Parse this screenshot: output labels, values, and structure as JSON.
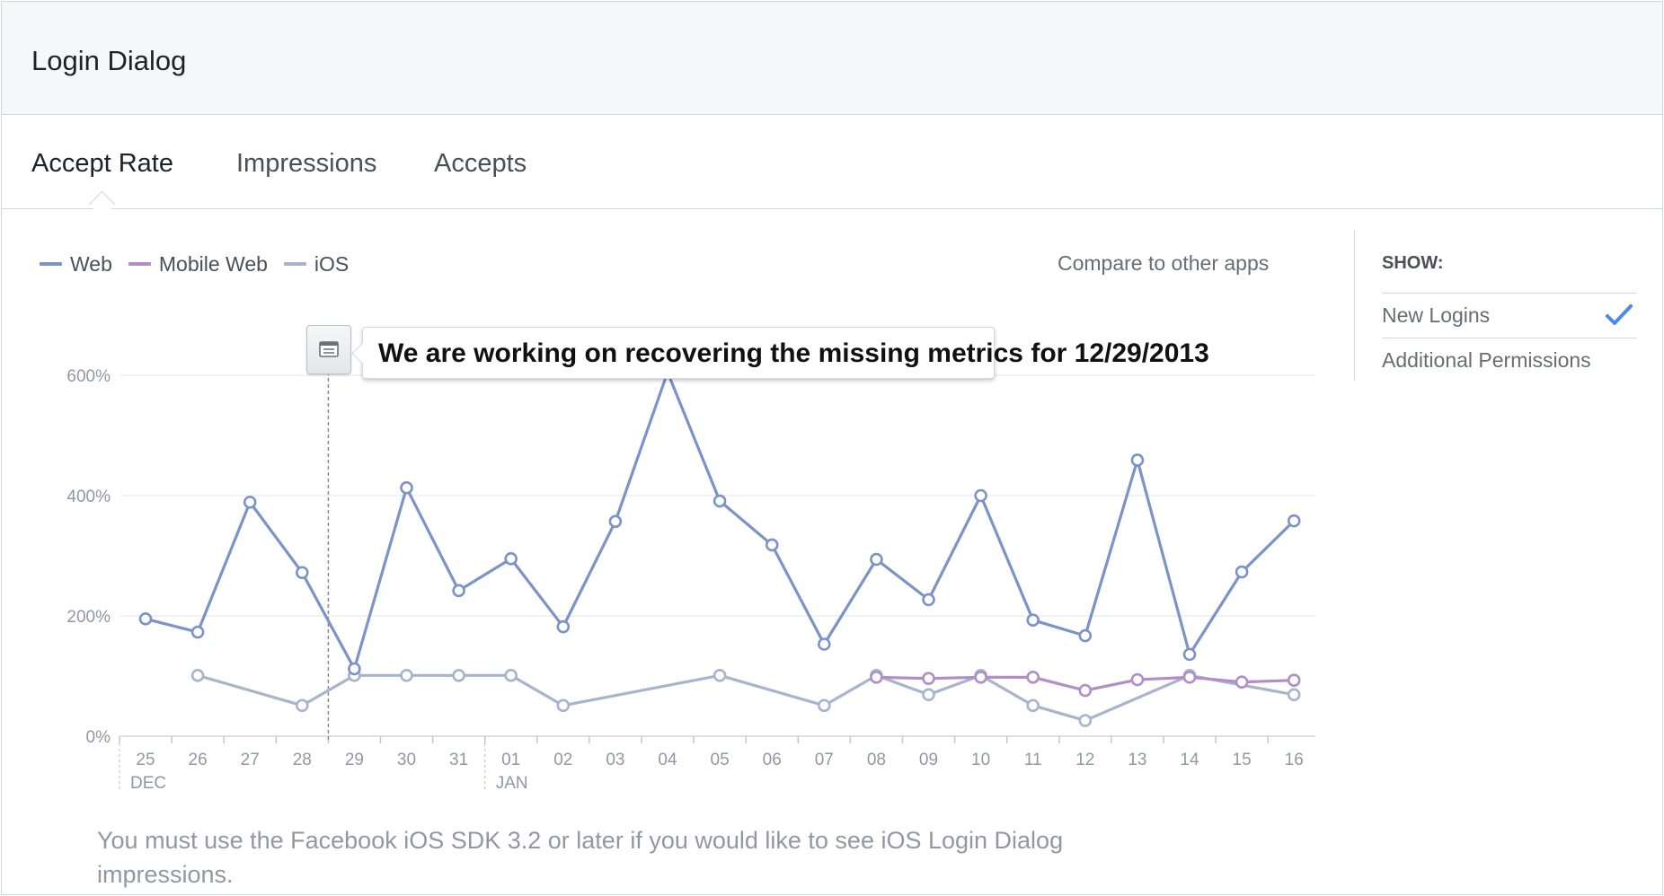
{
  "header": {
    "title": "Login Dialog"
  },
  "tabs": [
    {
      "label": "Accept Rate",
      "active": true
    },
    {
      "label": "Impressions",
      "active": false
    },
    {
      "label": "Accepts",
      "active": false
    }
  ],
  "compare_link": "Compare to other apps",
  "show_panel": {
    "title": "SHOW:",
    "items": [
      {
        "label": "New Logins",
        "checked": true
      },
      {
        "label": "Additional Permissions",
        "checked": false
      }
    ]
  },
  "annotation": {
    "icon": "note-icon",
    "date": "29",
    "text": "We are working on recovering the missing metrics for 12/29/2013"
  },
  "footer_note": "You must use the Facebook iOS SDK 3.2 or later if you would like to see iOS Login Dialog impressions.",
  "colors": {
    "web": "#7b93c7",
    "mobile_web": "#b38dc8",
    "ios": "#a8b4cd",
    "check": "#4a8be8"
  },
  "chart_data": {
    "type": "line",
    "categories": [
      "25",
      "26",
      "27",
      "28",
      "29",
      "30",
      "31",
      "01",
      "02",
      "03",
      "04",
      "05",
      "06",
      "07",
      "08",
      "09",
      "10",
      "11",
      "12",
      "13",
      "14",
      "15",
      "16"
    ],
    "month_labels": [
      {
        "at": "25",
        "label": "DEC"
      },
      {
        "at": "01",
        "label": "JAN"
      }
    ],
    "y_ticks": [
      "0%",
      "200%",
      "400%",
      "600%"
    ],
    "ylim": [
      0,
      600
    ],
    "grid": true,
    "legend_position": "top-left",
    "series": [
      {
        "name": "Web",
        "color": "#7b93c7",
        "values": [
          195,
          173,
          389,
          272,
          112,
          413,
          242,
          295,
          182,
          357,
          605,
          391,
          318,
          153,
          294,
          227,
          400,
          193,
          167,
          459,
          136,
          273,
          358
        ]
      },
      {
        "name": "Mobile Web",
        "color": "#b38dc8",
        "values": [
          null,
          null,
          null,
          null,
          null,
          null,
          null,
          null,
          null,
          null,
          null,
          null,
          null,
          null,
          98,
          96,
          98,
          98,
          76,
          94,
          98,
          90,
          93
        ]
      },
      {
        "name": "iOS",
        "color": "#a8b4cd",
        "values": [
          null,
          101,
          null,
          51,
          101,
          101,
          101,
          101,
          51,
          null,
          null,
          101,
          null,
          51,
          101,
          69,
          101,
          51,
          26,
          null,
          101,
          null,
          69
        ]
      }
    ]
  }
}
